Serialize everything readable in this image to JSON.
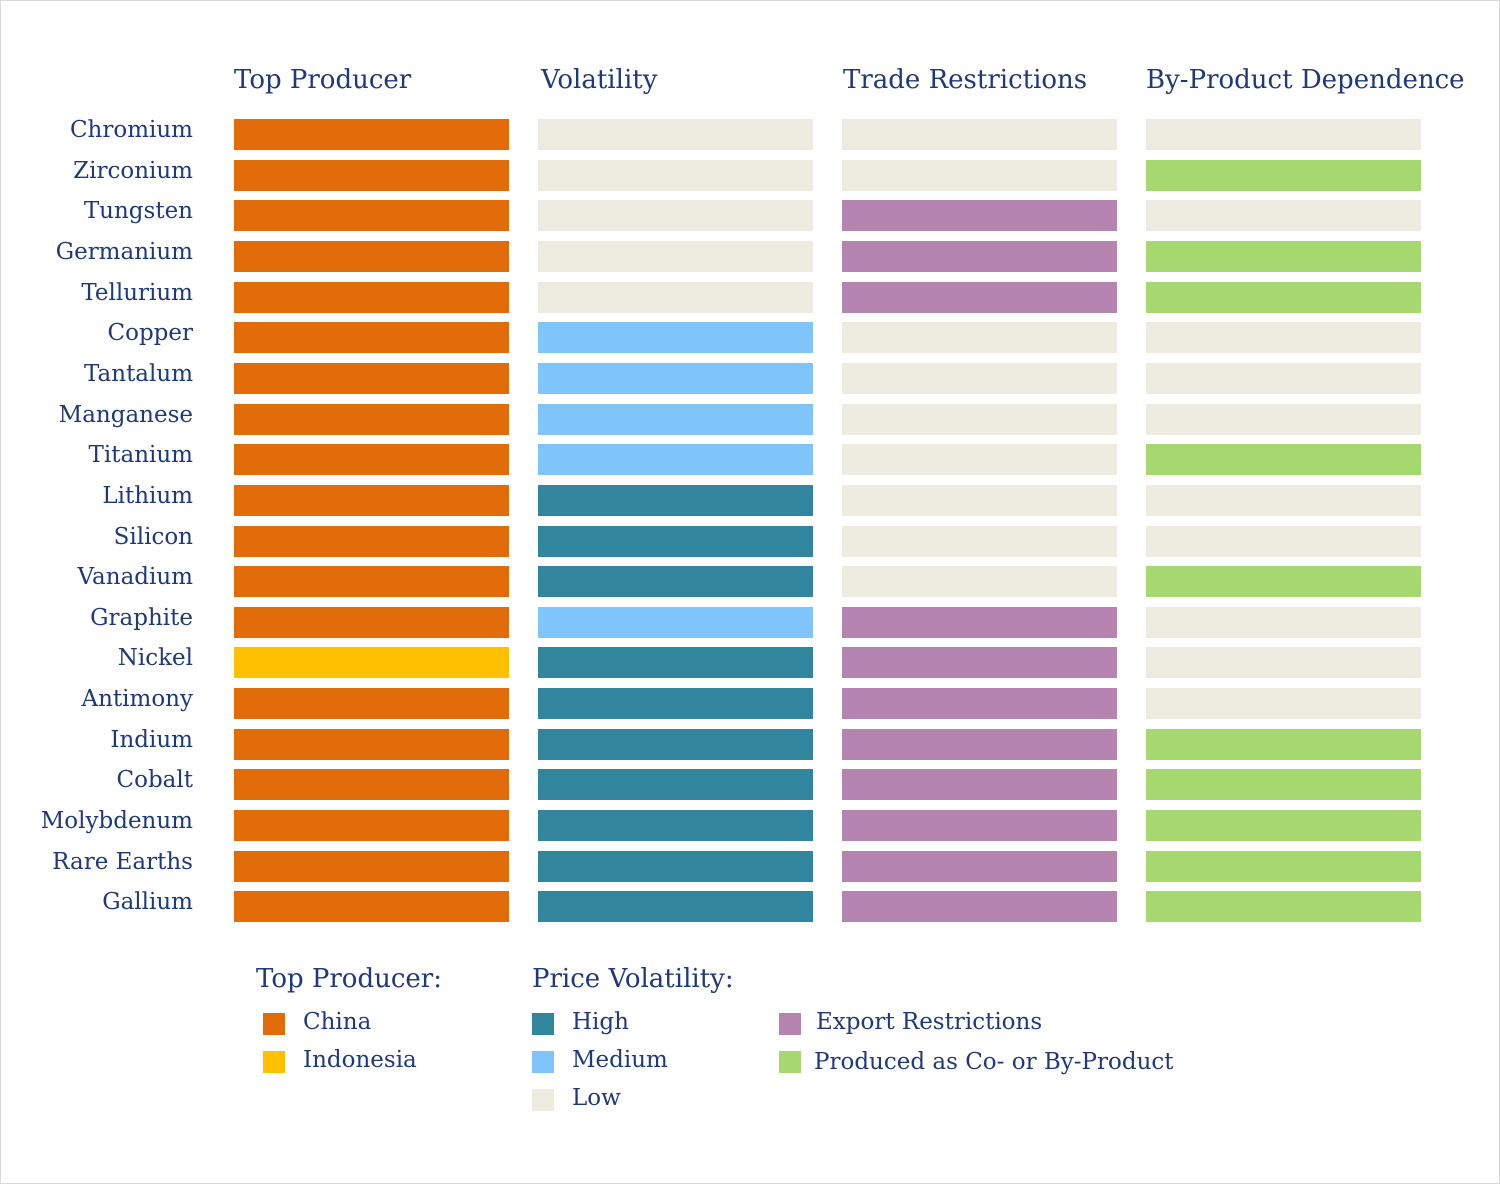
{
  "chart_data": {
    "type": "heatmap",
    "columns": [
      "Top Producer",
      "Volatility",
      "Trade Restrictions",
      "By-Product Dependence"
    ],
    "rows": [
      "Chromium",
      "Zirconium",
      "Tungsten",
      "Germanium",
      "Tellurium",
      "Copper",
      "Tantalum",
      "Manganese",
      "Titanium",
      "Lithium",
      "Silicon",
      "Vanadium",
      "Graphite",
      "Nickel",
      "Antimony",
      "Indium",
      "Cobalt",
      "Molybdenum",
      "Rare Earths",
      "Gallium"
    ],
    "top_producer": [
      "China",
      "China",
      "China",
      "China",
      "China",
      "China",
      "China",
      "China",
      "China",
      "China",
      "China",
      "China",
      "China",
      "Indonesia",
      "China",
      "China",
      "China",
      "China",
      "China",
      "China"
    ],
    "volatility": [
      "Low",
      "Low",
      "Low",
      "Low",
      "Low",
      "Medium",
      "Medium",
      "Medium",
      "Medium",
      "High",
      "High",
      "High",
      "Medium",
      "High",
      "High",
      "High",
      "High",
      "High",
      "High",
      "High"
    ],
    "export_restrictions": [
      false,
      false,
      true,
      true,
      true,
      false,
      false,
      false,
      false,
      false,
      false,
      false,
      true,
      true,
      true,
      true,
      true,
      true,
      true,
      true
    ],
    "by_product": [
      false,
      true,
      false,
      true,
      true,
      false,
      false,
      false,
      true,
      false,
      false,
      true,
      false,
      false,
      false,
      true,
      true,
      true,
      true,
      true
    ],
    "colors": {
      "China": "#e36c0a",
      "Indonesia": "#ffc000",
      "High": "#31859c",
      "Medium": "#80c4fc",
      "Low": "#eeebe0",
      "export": "#b584b0",
      "byproduct": "#a5d86f",
      "none": "#eeebe0"
    },
    "legend": {
      "producer_title": "Top Producer:",
      "producer_items": [
        "China",
        "Indonesia"
      ],
      "volatility_title": "Price Volatility:",
      "volatility_items": [
        "High",
        "Medium",
        "Low"
      ],
      "other_items": [
        "Export Restrictions",
        "Produced as Co- or By-Product"
      ]
    }
  }
}
